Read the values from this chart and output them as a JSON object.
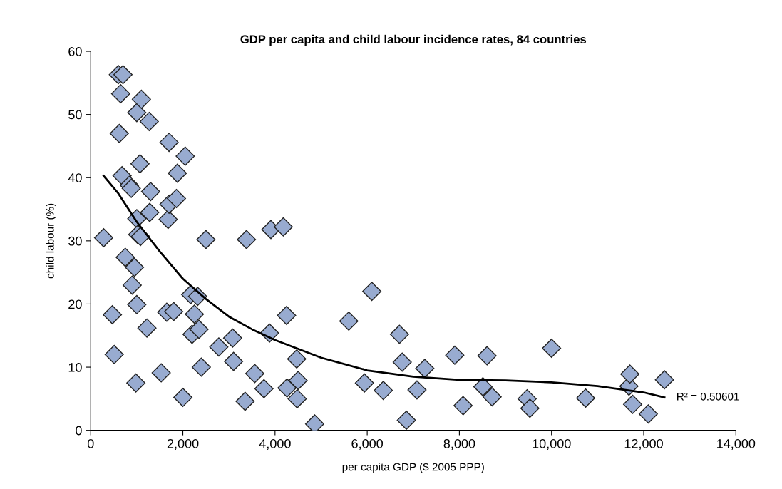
{
  "chart_data": {
    "type": "scatter",
    "title": "GDP per capita and child labour incidence rates, 84 countries",
    "xlabel": "per capita GDP ($ 2005 PPP)",
    "ylabel": "child labour (%)",
    "xlim": [
      0,
      14000
    ],
    "xticks": [
      {
        "value": 0,
        "label": "0"
      },
      {
        "value": 2000,
        "label": "2,000"
      },
      {
        "value": 4000,
        "label": "4,000"
      },
      {
        "value": 6000,
        "label": "6,000"
      },
      {
        "value": 8000,
        "label": "8,000"
      },
      {
        "value": 10000,
        "label": "10,000"
      },
      {
        "value": 12000,
        "label": "12,000"
      },
      {
        "value": 14000,
        "label": "14,000"
      }
    ],
    "ylim": [
      0,
      60
    ],
    "yticks": [
      0,
      10,
      20,
      30,
      40,
      50,
      60
    ],
    "grid": false,
    "marker": "diamond",
    "series": [
      {
        "color": "#98abd0",
        "x": [
          280,
          470,
          510,
          600,
          650,
          620,
          700,
          680,
          750,
          840,
          880,
          900,
          950,
          980,
          1000,
          1000,
          1000,
          1020,
          1070,
          1100,
          1080,
          1220,
          1270,
          1300,
          1280,
          1530,
          1650,
          1680,
          1700,
          1700,
          1800,
          1880,
          1860,
          2000,
          2050,
          2170,
          2200,
          2250,
          2320,
          2350,
          2400,
          2500,
          2780,
          3080,
          3100,
          3350,
          3380,
          3560,
          3760,
          3880,
          3910,
          4180,
          4250,
          4260,
          4470,
          4480,
          4500,
          4860,
          5600,
          5940,
          6100,
          6350,
          6700,
          6760,
          6850,
          7080,
          7250,
          7900,
          8080,
          8510,
          8600,
          8710,
          9470,
          9530,
          10000,
          10740,
          11680,
          11700,
          11760,
          12100,
          12450
        ],
        "values": [
          30.5,
          18.3,
          12.0,
          56.3,
          53.3,
          47.0,
          56.3,
          40.3,
          27.4,
          38.8,
          38.3,
          23.0,
          25.8,
          7.5,
          50.3,
          19.9,
          33.5,
          31.0,
          42.2,
          52.4,
          30.7,
          16.2,
          48.9,
          37.8,
          34.5,
          9.1,
          18.7,
          33.4,
          35.8,
          45.6,
          18.8,
          40.7,
          36.7,
          5.2,
          43.4,
          21.5,
          15.2,
          18.4,
          21.2,
          16.0,
          10.0,
          30.2,
          13.2,
          14.6,
          10.9,
          4.6,
          30.2,
          9.0,
          6.6,
          15.4,
          31.8,
          32.2,
          18.2,
          6.7,
          11.3,
          5.0,
          7.9,
          1.0,
          17.3,
          7.5,
          22.0,
          6.3,
          15.2,
          10.8,
          1.6,
          6.4,
          9.8,
          11.9,
          3.9,
          6.9,
          11.8,
          5.3,
          5.0,
          3.5,
          13.0,
          5.1,
          7.0,
          8.9,
          4.1,
          2.6,
          8.0
        ]
      },
      {
        "type": "line",
        "color": "#000000",
        "marker": "none",
        "x": [
          280,
          600,
          1000,
          1500,
          2000,
          2500,
          3000,
          3500,
          4000,
          5000,
          6000,
          7000,
          8000,
          9000,
          10000,
          11000,
          12000,
          12450
        ],
        "values": [
          40.3,
          37.5,
          33.0,
          28.3,
          24.0,
          20.8,
          18.0,
          16.0,
          14.3,
          11.5,
          9.5,
          8.5,
          8.0,
          7.9,
          7.6,
          7.0,
          6.0,
          5.2
        ]
      }
    ],
    "annotations": [
      {
        "text": "R² = 0.50601",
        "x": 12450,
        "y": 5.2
      }
    ]
  }
}
